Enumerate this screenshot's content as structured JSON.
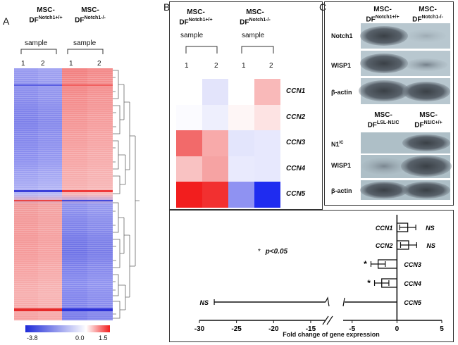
{
  "panels": {
    "a": "A",
    "b": "B",
    "c": "C"
  },
  "groups": {
    "wt_prefix": "MSC-",
    "wt_base": "DF",
    "wt_sup": "Notch1+/+",
    "ko_prefix": "MSC-",
    "ko_base": "DF",
    "ko_sup": "Notch1-/-",
    "lsl_prefix": "MSC-",
    "lsl_base": "DF",
    "lsl_sup": "LSL-N1IC",
    "n1ic_prefix": "MSC-",
    "n1ic_base": "DF",
    "n1ic_sup": "N1IC+/+"
  },
  "sample_label": "sample",
  "replicates": [
    "1",
    "2",
    "1",
    "2"
  ],
  "colorbar": {
    "min_label": "-3.8",
    "mid_label": "0.0",
    "max_label": "1.5",
    "low_color": "#1f2bd8",
    "mid_color": "#ffffff",
    "high_color": "#f21e1e"
  },
  "ccn_heatmap": {
    "genes": [
      "CCN1",
      "CCN2",
      "CCN3",
      "CCN4",
      "CCN5"
    ],
    "cells": [
      [
        "#ffffff",
        "#e3e4fb",
        "#ffffff",
        "#f9b9b9"
      ],
      [
        "#fbfbff",
        "#eeeffd",
        "#fef6f6",
        "#fde3e3"
      ],
      [
        "#f26a6a",
        "#f8aaaa",
        "#e3e5fc",
        "#e7e8fd"
      ],
      [
        "#f9c2c2",
        "#f6a3a3",
        "#e9eafd",
        "#e7e8fd"
      ],
      [
        "#f21e1e",
        "#f23030",
        "#8f92f2",
        "#1f2cf0"
      ]
    ]
  },
  "western_blot": {
    "top_labels": [
      "Notch1",
      "WISP1",
      "β-actin"
    ],
    "bottom_label_n1ic_base": "N1",
    "bottom_label_n1ic_sup": "IC",
    "bottom_labels_rest": [
      "WISP1",
      "β-actin"
    ]
  },
  "chart_data": {
    "type": "bar",
    "orientation": "horizontal",
    "title": "",
    "xlabel": "Fold change of gene expression",
    "ylabel": "",
    "categories": [
      "CCN1",
      "CCN2",
      "CCN3",
      "CCN4",
      "CCN5"
    ],
    "values": [
      1.2,
      1.3,
      -2.1,
      -1.7,
      -28
    ],
    "errors": [
      0.9,
      0.9,
      0.8,
      0.8,
      0
    ],
    "significance": [
      "NS",
      "NS",
      "*",
      "*",
      "NS"
    ],
    "x_ticks": [
      -30,
      -25,
      -20,
      -15,
      -5,
      0,
      5
    ],
    "axis_break": [
      -13,
      -6
    ],
    "xlim": [
      -30,
      5
    ],
    "legend_note_star": "*",
    "legend_note_text": "p<0.05"
  }
}
